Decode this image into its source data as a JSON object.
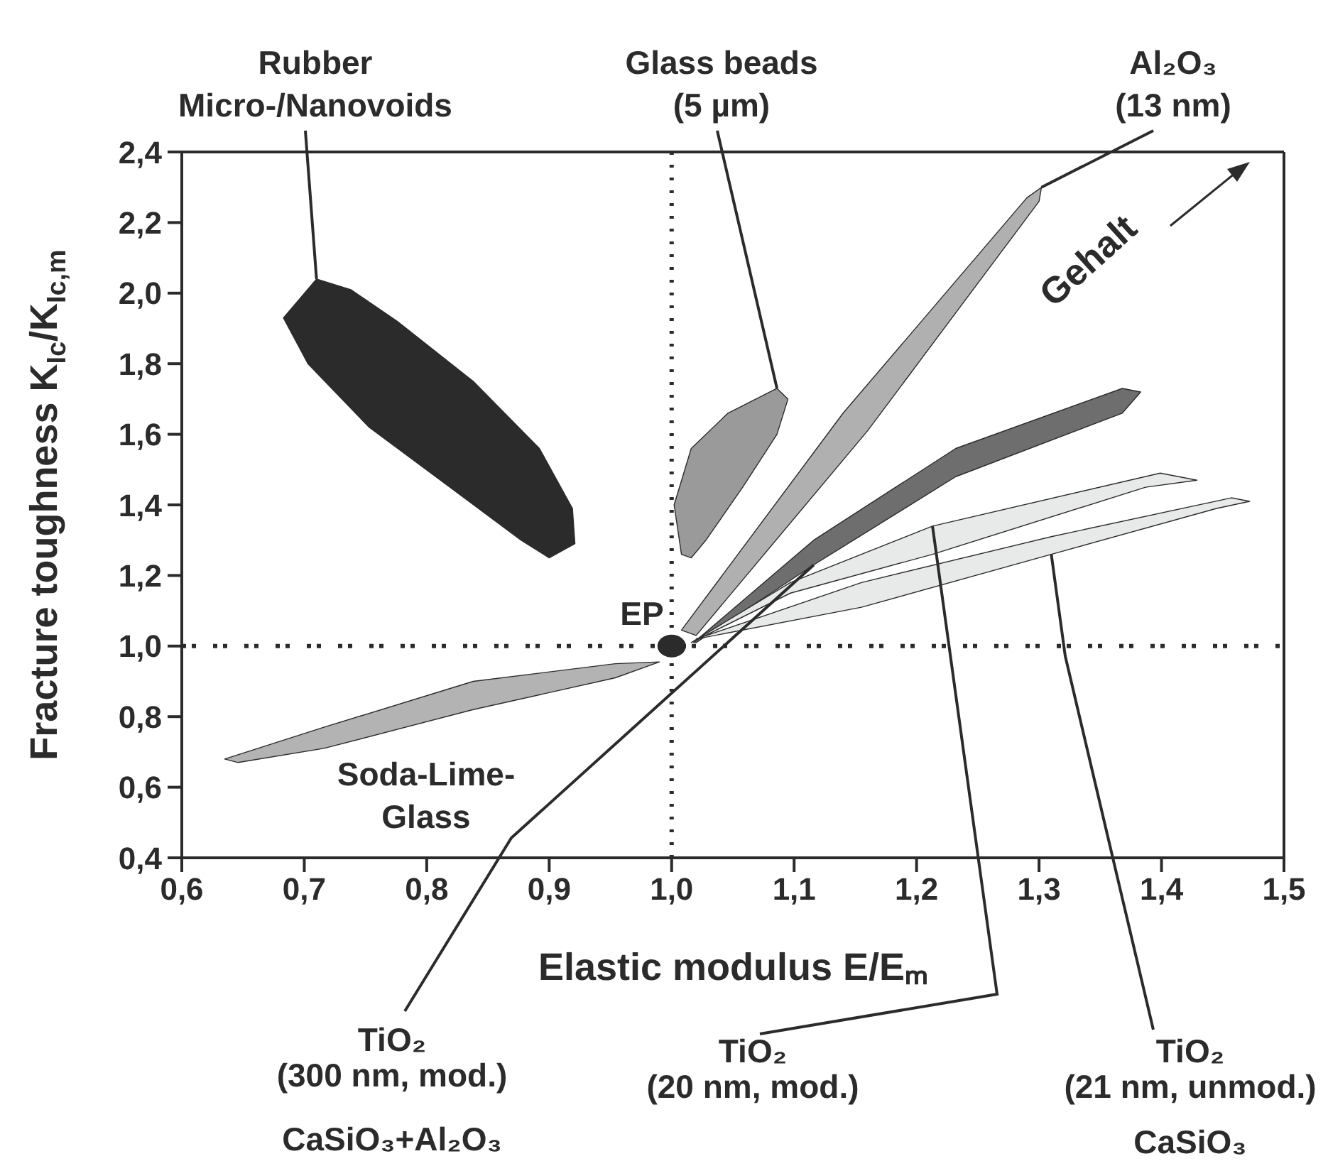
{
  "chart_data": {
    "type": "area",
    "xlabel": "Elastic modulus E/Eₘ",
    "ylabel": "Fracture toughness K$_{Ic}$/K$_{Ic,m}$",
    "xlim": [
      0.6,
      1.5
    ],
    "ylim": [
      0.4,
      2.4
    ],
    "xticks": [
      {
        "value": 0.6,
        "label": "0,6"
      },
      {
        "value": 0.7,
        "label": "0,7"
      },
      {
        "value": 0.8,
        "label": "0,8"
      },
      {
        "value": 0.9,
        "label": "0,9"
      },
      {
        "value": 1.0,
        "label": "1,0"
      },
      {
        "value": 1.1,
        "label": "1,1"
      },
      {
        "value": 1.2,
        "label": "1,2"
      },
      {
        "value": 1.3,
        "label": "1,3"
      },
      {
        "value": 1.4,
        "label": "1,4"
      },
      {
        "value": 1.5,
        "label": "1,5"
      }
    ],
    "yticks": [
      {
        "value": 0.4,
        "label": "0,4"
      },
      {
        "value": 0.6,
        "label": "0,6"
      },
      {
        "value": 0.8,
        "label": "0,8"
      },
      {
        "value": 1.0,
        "label": "1,0"
      },
      {
        "value": 1.2,
        "label": "1,2"
      },
      {
        "value": 1.4,
        "label": "1,4"
      },
      {
        "value": 1.6,
        "label": "1,6"
      },
      {
        "value": 1.8,
        "label": "1,8"
      },
      {
        "value": 2.0,
        "label": "2,0"
      },
      {
        "value": 2.2,
        "label": "2,2"
      },
      {
        "value": 2.4,
        "label": "2,4"
      }
    ],
    "series": [
      {
        "name": "Rubber\nMicro-/Nanovoids",
        "color": "#2b2b2b",
        "x": [
          0.71,
          0.683,
          0.703,
          0.753,
          0.819,
          0.877,
          0.9,
          0.921,
          0.919,
          0.892,
          0.838,
          0.776,
          0.738
        ],
        "values": [
          2.04,
          1.93,
          1.8,
          1.62,
          1.45,
          1.3,
          1.25,
          1.29,
          1.39,
          1.56,
          1.75,
          1.92,
          2.01
        ]
      },
      {
        "name": "Glass beads\n(5 µm)",
        "color": "#9a9a9a",
        "x": [
          1.008,
          1.002,
          1.016,
          1.046,
          1.086,
          1.095,
          1.086,
          1.058,
          1.028,
          1.016
        ],
        "values": [
          1.26,
          1.4,
          1.56,
          1.66,
          1.73,
          1.7,
          1.6,
          1.45,
          1.3,
          1.25
        ]
      },
      {
        "name": "Al₂O₃\n(13 nm)",
        "color": "#b0b0b0",
        "x": [
          1.008,
          1.14,
          1.29,
          1.302,
          1.3,
          1.16,
          1.02
        ],
        "values": [
          1.045,
          1.66,
          2.27,
          2.3,
          2.26,
          1.61,
          1.03
        ]
      },
      {
        "name": "TiO₂\n(300 nm, mod.)\nCaSiO₃+Al₂O₃",
        "color": "#6e6e6e",
        "x": [
          1.018,
          1.116,
          1.232,
          1.368,
          1.383,
          1.368,
          1.232,
          1.116,
          1.02
        ],
        "values": [
          1.01,
          1.3,
          1.56,
          1.73,
          1.72,
          1.66,
          1.48,
          1.23,
          1.01
        ]
      },
      {
        "name": "TiO₂\n(20 nm, mod.)",
        "color": "#e8eaea",
        "x": [
          1.016,
          1.097,
          1.213,
          1.399,
          1.429,
          1.387,
          1.213,
          1.097
        ],
        "values": [
          1.01,
          1.18,
          1.34,
          1.49,
          1.47,
          1.45,
          1.26,
          1.15
        ]
      },
      {
        "name": "TiO₂\n(21 nm, unmod.)\nCaSiO₃",
        "color": "#e8eaea",
        "x": [
          1.02,
          1.155,
          1.31,
          1.457,
          1.472,
          1.445,
          1.31,
          1.155
        ],
        "values": [
          1.02,
          1.18,
          1.31,
          1.42,
          1.41,
          1.39,
          1.26,
          1.11
        ]
      },
      {
        "name": "Soda-Lime-\nGlass",
        "color": "#b3b3b3",
        "x": [
          0.635,
          0.716,
          0.838,
          0.954,
          0.99,
          0.954,
          0.838,
          0.716,
          0.646
        ],
        "values": [
          0.68,
          0.77,
          0.9,
          0.95,
          0.955,
          0.91,
          0.82,
          0.71,
          0.67
        ]
      },
      {
        "name": "EP",
        "type": "scatter",
        "color": "#2b2b2b",
        "x": [
          1.0
        ],
        "values": [
          1.0
        ]
      }
    ],
    "ref_lines": [
      {
        "axis": "x",
        "value": 1.0,
        "color": "#2b2b2b",
        "line_style": "dotted"
      },
      {
        "axis": "y",
        "value": 1.0,
        "color": "#2b2b2b",
        "line_style": "dotted"
      }
    ],
    "annotations": [
      "Gehalt"
    ]
  }
}
